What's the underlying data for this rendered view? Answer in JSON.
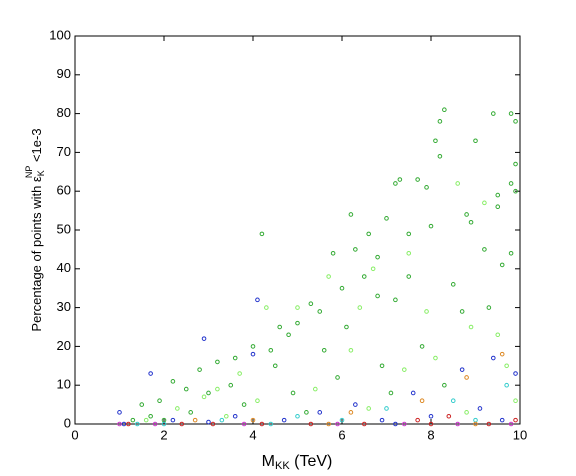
{
  "chart_data": {
    "type": "scatter",
    "xlabel": {
      "main": "M",
      "sub": "KK",
      "tail": " (TeV)"
    },
    "ylabel": {
      "main": "Percentage of points with ε",
      "sub": "K",
      "sup": "NP",
      "tail": " <1e-3"
    },
    "xlim": [
      0,
      10
    ],
    "ylim": [
      0,
      100
    ],
    "xticks": [
      0,
      2,
      4,
      6,
      8,
      10
    ],
    "yticks": [
      0,
      10,
      20,
      30,
      40,
      50,
      60,
      70,
      80,
      90,
      100
    ],
    "series": [
      {
        "color": "#33aa33",
        "x": [
          8.3,
          8.2,
          9.4,
          9.8,
          9.9,
          8.1,
          8.2,
          9.0,
          9.9,
          9.8,
          9.9,
          9.5,
          9.5,
          8.8,
          8.9,
          7.7,
          7.9,
          7.3,
          7.2,
          7.0,
          7.5,
          6.2,
          6.6,
          8.0,
          9.8,
          4.2,
          5.8,
          6.3,
          6.8,
          6.5,
          6.0,
          5.3,
          5.5,
          6.8,
          7.2,
          5.0,
          4.6,
          4.8,
          4.4,
          4.0,
          3.6,
          3.2,
          2.8,
          2.5,
          2.2,
          1.9,
          1.5,
          3.0,
          3.5,
          4.5,
          5.6,
          6.1,
          7.5,
          8.5,
          9.2,
          9.6,
          7.8,
          8.7,
          6.9,
          5.9,
          4.9,
          3.8,
          2.6,
          1.7,
          9.3,
          8.3,
          7.1,
          1.3,
          2.0,
          5.2
        ],
        "values": [
          81,
          78,
          80,
          80,
          78,
          73,
          69,
          73,
          67,
          62,
          60,
          59,
          56,
          54,
          52,
          63,
          61,
          63,
          62,
          53,
          49,
          54,
          49,
          51,
          44,
          49,
          44,
          45,
          43,
          38,
          35,
          31,
          29,
          33,
          32,
          26,
          25,
          23,
          19,
          20,
          17,
          16,
          14,
          9,
          11,
          6,
          5,
          8,
          10,
          15,
          19,
          25,
          38,
          36,
          45,
          41,
          20,
          29,
          15,
          12,
          8,
          5,
          3,
          2,
          30,
          10,
          8,
          1,
          1,
          3
        ]
      },
      {
        "color": "#88ee66",
        "x": [
          9.2,
          8.6,
          7.5,
          6.7,
          5.7,
          5.0,
          4.3,
          6.4,
          7.9,
          8.9,
          9.5,
          3.7,
          3.2,
          2.9,
          2.3,
          6.2,
          7.4,
          8.1,
          9.7,
          5.4,
          4.1,
          1.6,
          3.4,
          6.6,
          8.8,
          9.9
        ],
        "values": [
          57,
          62,
          44,
          40,
          38,
          30,
          30,
          30,
          29,
          25,
          23,
          13,
          9,
          7,
          4,
          19,
          14,
          17,
          15,
          9,
          6,
          1,
          2,
          4,
          3,
          6
        ]
      },
      {
        "color": "#2233cc",
        "x": [
          4.1,
          1.7,
          2.9,
          9.9,
          8.7,
          9.4,
          4.0,
          7.6,
          6.3,
          5.5,
          3.6,
          2.2,
          9.1,
          8.0,
          1.1,
          4.7,
          6.9,
          9.6,
          3.0,
          7.2,
          1.0
        ],
        "values": [
          32,
          13,
          22,
          13,
          14,
          17,
          18,
          8,
          5,
          3,
          2,
          1,
          4,
          2,
          0,
          1,
          1,
          1,
          0.5,
          0,
          3
        ]
      },
      {
        "color": "#33cccc",
        "x": [
          9.7,
          8.5,
          7.0,
          5.0,
          3.3,
          2.0,
          1.4,
          6.0,
          4.4,
          9.0
        ],
        "values": [
          10,
          6,
          4,
          2,
          1,
          0,
          0,
          1,
          0,
          1
        ]
      },
      {
        "color": "#cc2222",
        "x": [
          9.9,
          8.4,
          7.7,
          6.5,
          5.3,
          4.2,
          3.1,
          2.4,
          1.2,
          9.3,
          8.0
        ],
        "values": [
          1,
          2,
          1,
          0,
          0,
          0,
          0,
          0,
          0,
          0,
          0
        ]
      },
      {
        "color": "#dd8822",
        "x": [
          9.6,
          8.8,
          7.8,
          6.2,
          4.0,
          2.7,
          5.7,
          9.0
        ],
        "values": [
          18,
          12,
          6,
          3,
          1,
          1,
          0,
          0
        ]
      },
      {
        "color": "#cc33cc",
        "x": [
          1.8,
          3.8,
          5.9,
          7.4,
          8.6,
          9.8,
          1.0
        ],
        "values": [
          0,
          0,
          0,
          0,
          0,
          0,
          0
        ]
      }
    ]
  }
}
